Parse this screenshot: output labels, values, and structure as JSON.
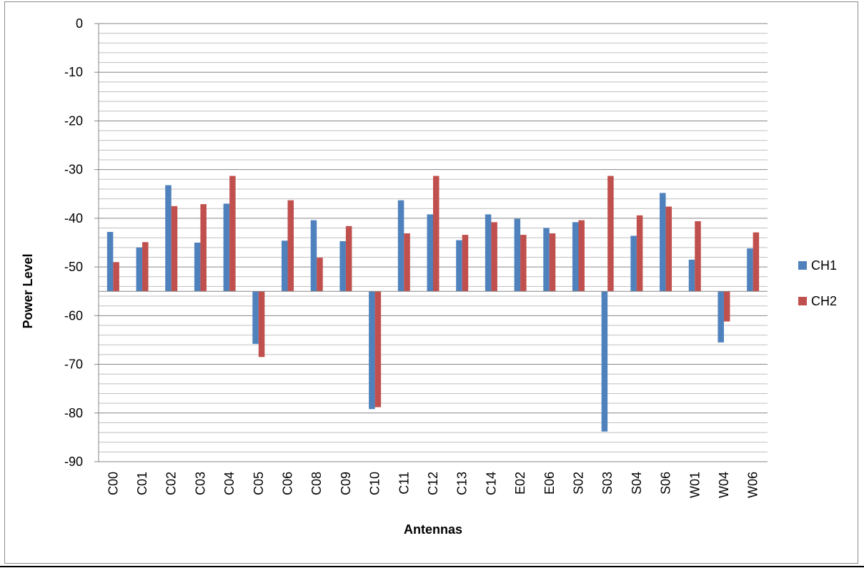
{
  "chart_data": {
    "type": "bar",
    "title": "",
    "xlabel": "Antennas",
    "ylabel": "Power Level",
    "ylim": [
      -90,
      0
    ],
    "baseline": -55,
    "y_major_ticks": [
      0,
      -10,
      -20,
      -30,
      -40,
      -50,
      -60,
      -70,
      -80,
      -90
    ],
    "y_minor_step": 2,
    "grid": true,
    "legend_position": "right",
    "categories": [
      "C00",
      "C01",
      "C02",
      "C03",
      "C04",
      "C05",
      "C06",
      "C08",
      "C09",
      "C10",
      "C11",
      "C12",
      "C13",
      "C14",
      "E02",
      "E06",
      "S02",
      "S03",
      "S04",
      "S06",
      "W01",
      "W04",
      "W06"
    ],
    "series": [
      {
        "name": "CH1",
        "color": "#4f81bd",
        "values": [
          -42.8,
          -46.0,
          -33.2,
          -45.0,
          -37.0,
          -65.8,
          -44.6,
          -40.4,
          -44.7,
          -79.2,
          -36.3,
          -39.2,
          -44.5,
          -39.2,
          -40.1,
          -42.0,
          -40.8,
          -83.8,
          -43.6,
          -34.8,
          -48.5,
          -65.5,
          -46.2
        ]
      },
      {
        "name": "CH2",
        "color": "#c0504d",
        "values": [
          -49.0,
          -44.9,
          -37.5,
          -37.1,
          -31.3,
          -68.5,
          -36.3,
          -48.1,
          -41.6,
          -78.8,
          -43.1,
          -31.3,
          -43.4,
          -40.8,
          -43.4,
          -43.1,
          -40.4,
          -31.3,
          -39.4,
          -37.6,
          -40.6,
          -61.2,
          -42.9
        ]
      }
    ]
  }
}
